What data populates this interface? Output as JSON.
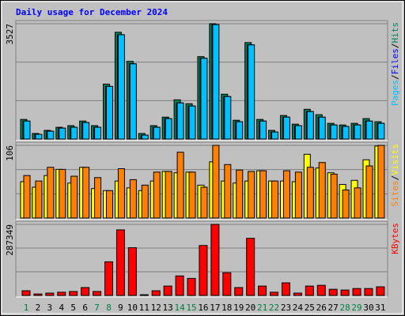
{
  "chart_data": [
    {
      "type": "bar",
      "title": "Daily usage for December 2024",
      "title_color": "#0000ff",
      "ylim": [
        0,
        3527
      ],
      "yticks": [
        3527
      ],
      "legend_separator": "/",
      "series": [
        {
          "name": "Hits",
          "color": "#00805c",
          "values": [
            600,
            170,
            265,
            360,
            410,
            550,
            410,
            1680,
            3265,
            2375,
            170,
            410,
            670,
            1200,
            1080,
            2520,
            3527,
            1370,
            575,
            2950,
            600,
            265,
            720,
            455,
            910,
            745,
            480,
            430,
            480,
            625,
            530
          ]
        },
        {
          "name": "Files",
          "color": "#0000ff",
          "values": [
            550,
            145,
            240,
            335,
            360,
            505,
            360,
            1610,
            3190,
            2300,
            120,
            360,
            625,
            1105,
            1010,
            2470,
            3500,
            1300,
            530,
            2880,
            550,
            215,
            670,
            410,
            840,
            670,
            430,
            385,
            430,
            550,
            480
          ]
        },
        {
          "name": "Pages",
          "color": "#00c0ff",
          "values": [
            550,
            145,
            240,
            335,
            360,
            505,
            360,
            1610,
            3190,
            2300,
            120,
            360,
            625,
            1105,
            1010,
            2470,
            3500,
            1300,
            530,
            2880,
            550,
            215,
            670,
            410,
            840,
            670,
            430,
            385,
            430,
            550,
            480
          ]
        }
      ]
    },
    {
      "type": "bar",
      "ylim": [
        0,
        106
      ],
      "yticks": [
        106
      ],
      "legend_separator": "/",
      "series": [
        {
          "name": "Visits",
          "color": "#ffff00",
          "values": [
            53,
            45,
            62,
            71,
            51,
            74,
            43,
            40,
            54,
            44,
            40,
            54,
            68,
            66,
            67,
            48,
            82,
            54,
            51,
            54,
            69,
            54,
            54,
            53,
            93,
            73,
            66,
            49,
            55,
            85,
            105
          ]
        },
        {
          "name": "Sites",
          "color": "#ff8000",
          "values": [
            62,
            54,
            74,
            71,
            61,
            74,
            59,
            40,
            72,
            56,
            48,
            67,
            68,
            96,
            67,
            45,
            106,
            78,
            70,
            68,
            69,
            54,
            69,
            67,
            74,
            81,
            64,
            41,
            44,
            76,
            106
          ]
        }
      ]
    },
    {
      "type": "bar",
      "ylim": [
        0,
        287349
      ],
      "yticks": [
        287349
      ],
      "categories": [
        "1",
        "2",
        "3",
        "4",
        "5",
        "6",
        "7",
        "8",
        "9",
        "10",
        "11",
        "12",
        "13",
        "14",
        "15",
        "16",
        "17",
        "18",
        "19",
        "20",
        "21",
        "22",
        "23",
        "24",
        "25",
        "26",
        "27",
        "28",
        "29",
        "30",
        "31"
      ],
      "category_colors": [
        "#008040",
        "#000000",
        "#000000",
        "#000000",
        "#000000",
        "#000000",
        "#008040",
        "#008040",
        "#000000",
        "#000000",
        "#000000",
        "#000000",
        "#000000",
        "#008040",
        "#008040",
        "#000000",
        "#000000",
        "#000000",
        "#000000",
        "#000000",
        "#008040",
        "#008040",
        "#000000",
        "#000000",
        "#000000",
        "#000000",
        "#000000",
        "#008040",
        "#008040",
        "#000000",
        "#000000"
      ],
      "series": [
        {
          "name": "KBytes",
          "color": "#ff0000",
          "values": [
            19000,
            6000,
            9500,
            13000,
            16000,
            32000,
            16000,
            136000,
            265000,
            193000,
            3000,
            19000,
            38000,
            79000,
            69000,
            202000,
            287349,
            92000,
            32000,
            231000,
            38000,
            13000,
            51000,
            9500,
            38000,
            41000,
            25000,
            22000,
            28000,
            28000,
            35000
          ]
        }
      ]
    }
  ]
}
